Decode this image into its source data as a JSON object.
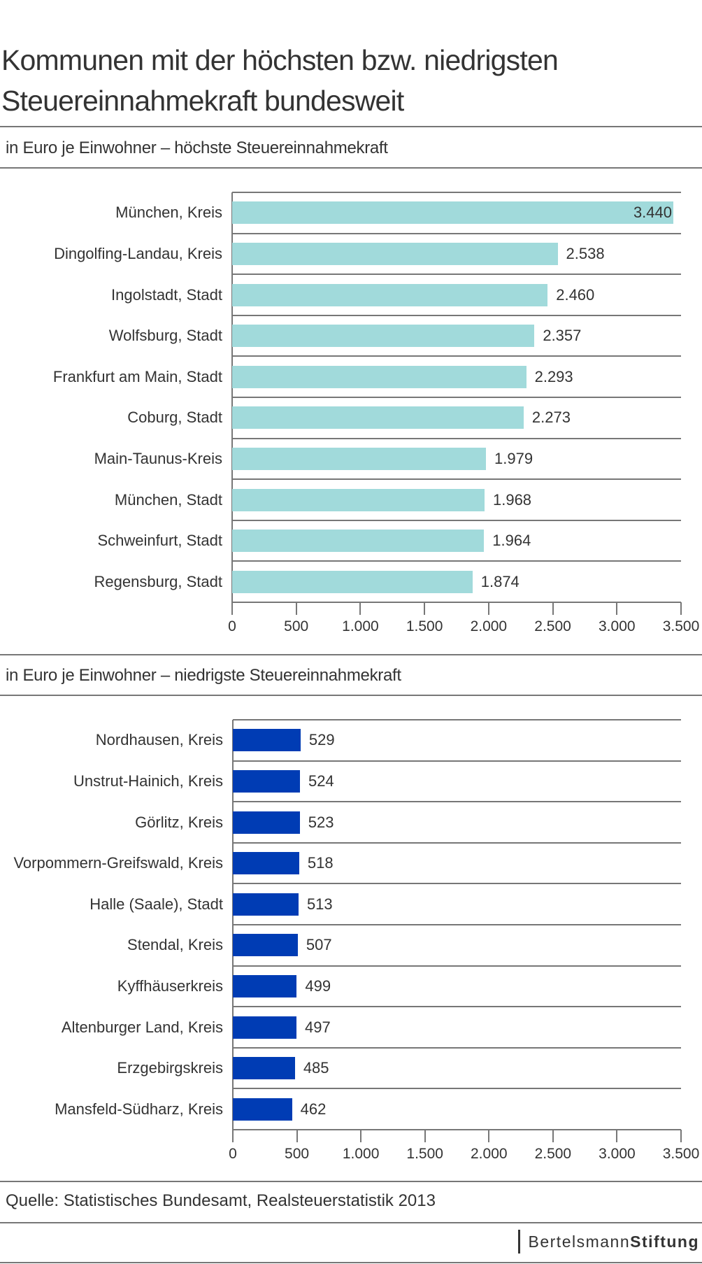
{
  "title_line1": "Kommunen mit der höchsten bzw. niedrigsten",
  "title_line2": "Steuereinnahmekraft bundesweit",
  "source": "Quelle: Statistisches Bundesamt, Realsteuerstatistik 2013",
  "logo": {
    "part1": "Bertelsmann",
    "part2": "Stiftung"
  },
  "chart_data": [
    {
      "type": "bar",
      "orientation": "horizontal",
      "title": "in Euro je Einwohner – höchste Steuereinnahmekraft",
      "color": "#a1dadb",
      "categories": [
        "München, Kreis",
        "Dingolfing-Landau, Kreis",
        "Ingolstadt, Stadt",
        "Wolfsburg, Stadt",
        "Frankfurt am Main, Stadt",
        "Coburg, Stadt",
        "Main-Taunus-Kreis",
        "München, Stadt",
        "Schweinfurt, Stadt",
        "Regensburg, Stadt"
      ],
      "values": [
        3440,
        2538,
        2460,
        2357,
        2293,
        2273,
        1979,
        1968,
        1964,
        1874
      ],
      "value_labels": [
        "3.440",
        "2.538",
        "2.460",
        "2.357",
        "2.293",
        "2.273",
        "1.979",
        "1.968",
        "1.964",
        "1.874"
      ],
      "xlim": [
        0,
        3500
      ],
      "ticks": [
        0,
        500,
        1000,
        1500,
        2000,
        2500,
        3000,
        3500
      ],
      "tick_labels": [
        "0",
        "500",
        "1.000",
        "1.500",
        "2.000",
        "2.500",
        "3.000",
        "3.500"
      ]
    },
    {
      "type": "bar",
      "orientation": "horizontal",
      "title": "in Euro je Einwohner – niedrigste Steuereinnahmekraft",
      "color": "#003cb4",
      "categories": [
        "Nordhausen, Kreis",
        "Unstrut-Hainich, Kreis",
        "Görlitz, Kreis",
        "Vorpommern-Greifswald, Kreis",
        "Halle (Saale), Stadt",
        "Stendal, Kreis",
        "Kyffhäuserkreis",
        "Altenburger Land, Kreis",
        "Erzgebirgskreis",
        "Mansfeld-Südharz, Kreis"
      ],
      "values": [
        529,
        524,
        523,
        518,
        513,
        507,
        499,
        497,
        485,
        462
      ],
      "value_labels": [
        "529",
        "524",
        "523",
        "518",
        "513",
        "507",
        "499",
        "497",
        "485",
        "462"
      ],
      "xlim": [
        0,
        3500
      ],
      "ticks": [
        0,
        500,
        1000,
        1500,
        2000,
        2500,
        3000,
        3500
      ],
      "tick_labels": [
        "0",
        "500",
        "1.000",
        "1.500",
        "2.000",
        "2.500",
        "3.000",
        "3.500"
      ]
    }
  ]
}
